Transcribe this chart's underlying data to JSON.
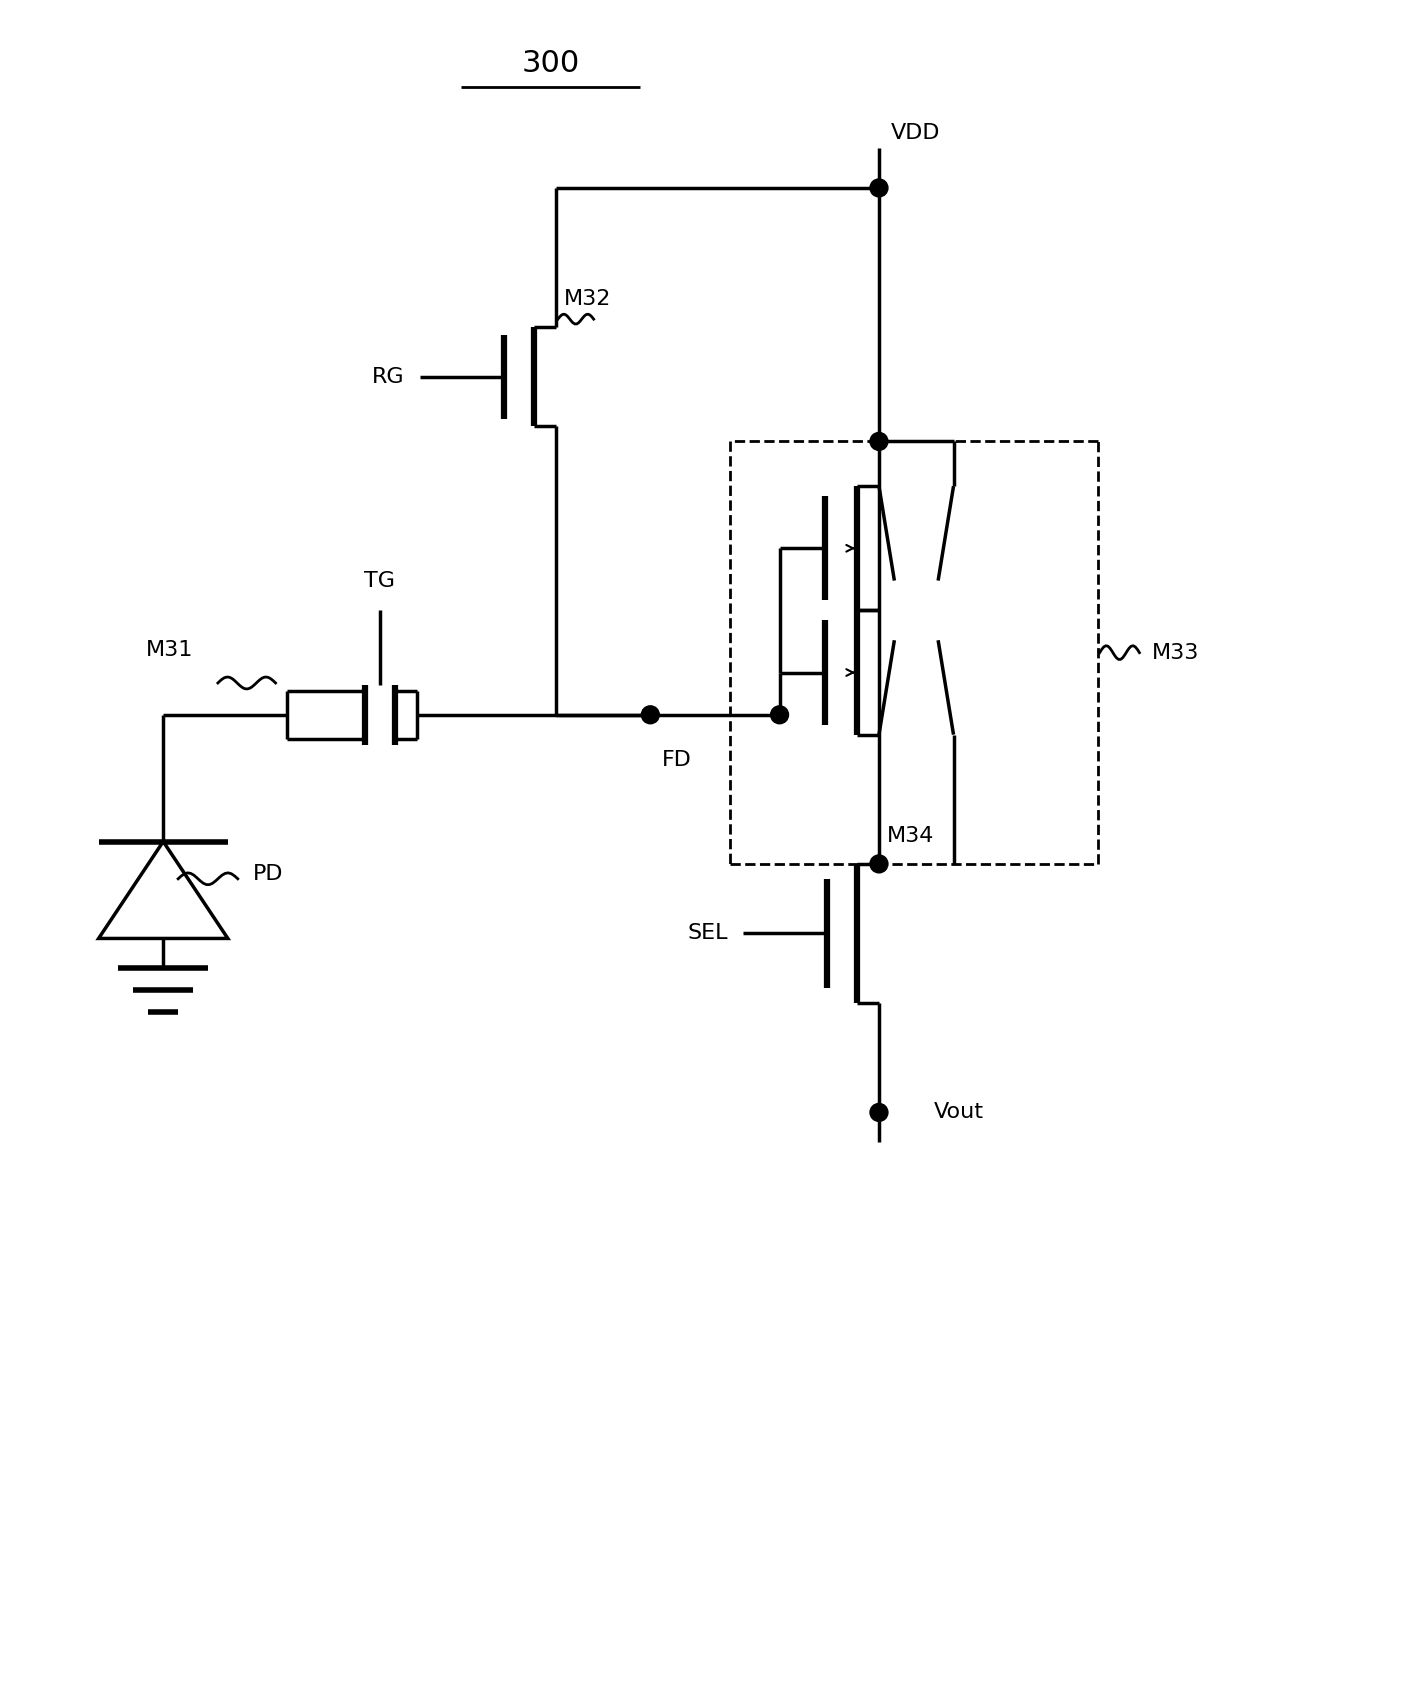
{
  "title": "300",
  "bg": "#ffffff",
  "lc": "#000000",
  "lw": 2.5,
  "fw": 14.11,
  "fh": 16.94,
  "labels": {
    "VDD": "VDD",
    "RG": "RG",
    "TG": "TG",
    "M31": "M31",
    "M32": "M32",
    "M33": "M33",
    "M34": "M34",
    "FD": "FD",
    "PD": "PD",
    "SEL": "SEL",
    "Vout": "Vout",
    "title": "300"
  }
}
